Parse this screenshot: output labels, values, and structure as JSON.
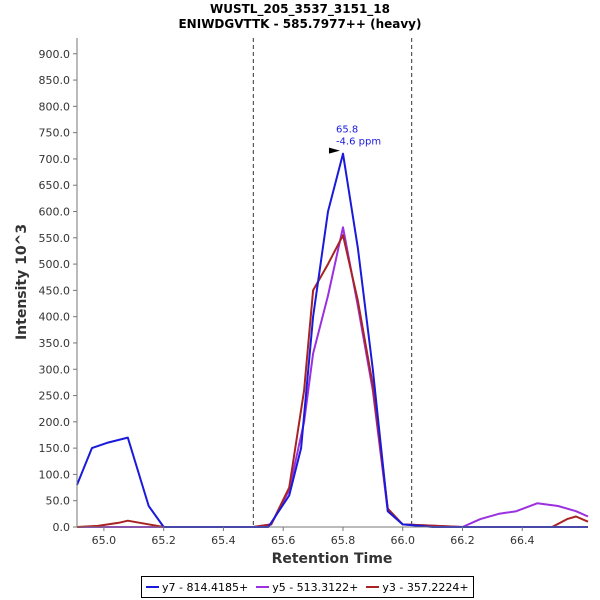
{
  "title": "WUSTL_205_3537_3151_18",
  "subtitle": "ENIWDGVTTK - 585.7977++ (heavy)",
  "chart_data": {
    "type": "line",
    "xlabel": "Retention Time",
    "ylabel": "Intensity 10^3",
    "xlim": [
      64.91,
      66.62
    ],
    "ylim": [
      0,
      930
    ],
    "x_ticks": [
      "65.0",
      "65.2",
      "65.4",
      "65.6",
      "65.8",
      "66.0",
      "66.2",
      "66.4"
    ],
    "y_ticks": [
      "0.0",
      "50.0",
      "100.0",
      "150.0",
      "200.0",
      "250.0",
      "300.0",
      "350.0",
      "400.0",
      "450.0",
      "500.0",
      "550.0",
      "600.0",
      "650.0",
      "700.0",
      "750.0",
      "800.0",
      "850.0",
      "900.0"
    ],
    "vlines": [
      65.5,
      66.03
    ],
    "grid": false,
    "legend_position": "bottom",
    "annotation": {
      "x": 65.8,
      "y": 710,
      "line1": "65.8",
      "line2": "-4.6 ppm"
    },
    "series": [
      {
        "name": "y7 - 814.4185+",
        "color": "#1a1adb",
        "x": [
          64.91,
          64.96,
          65.01,
          65.08,
          65.15,
          65.2,
          65.3,
          65.4,
          65.5,
          65.55,
          65.62,
          65.66,
          65.7,
          65.75,
          65.8,
          65.85,
          65.9,
          65.95,
          66.0,
          66.1,
          66.2,
          66.3,
          66.4,
          66.5,
          66.62
        ],
        "y": [
          80,
          150,
          160,
          170,
          40,
          0,
          0,
          0,
          0,
          0,
          60,
          150,
          400,
          600,
          710,
          530,
          300,
          30,
          5,
          0,
          0,
          0,
          0,
          0,
          0
        ]
      },
      {
        "name": "y5 - 513.3122+",
        "color": "#9b30e0",
        "x": [
          64.91,
          65.1,
          65.3,
          65.5,
          65.56,
          65.62,
          65.67,
          65.7,
          65.75,
          65.8,
          65.85,
          65.9,
          65.95,
          66.0,
          66.2,
          66.26,
          66.32,
          66.38,
          66.45,
          66.52,
          66.58,
          66.62
        ],
        "y": [
          0,
          0,
          0,
          0,
          5,
          70,
          200,
          330,
          440,
          570,
          420,
          260,
          30,
          5,
          0,
          15,
          25,
          30,
          45,
          40,
          30,
          20
        ]
      },
      {
        "name": "y3 - 357.2224+",
        "color": "#a82424",
        "x": [
          64.91,
          64.98,
          65.05,
          65.08,
          65.12,
          65.2,
          65.3,
          65.5,
          65.56,
          65.62,
          65.67,
          65.7,
          65.75,
          65.8,
          65.85,
          65.9,
          65.95,
          66.0,
          66.2,
          66.4,
          66.5,
          66.55,
          66.58,
          66.62
        ],
        "y": [
          0,
          2,
          8,
          12,
          8,
          0,
          0,
          0,
          5,
          75,
          260,
          450,
          500,
          555,
          430,
          270,
          35,
          5,
          0,
          0,
          0,
          15,
          20,
          10
        ]
      }
    ]
  }
}
